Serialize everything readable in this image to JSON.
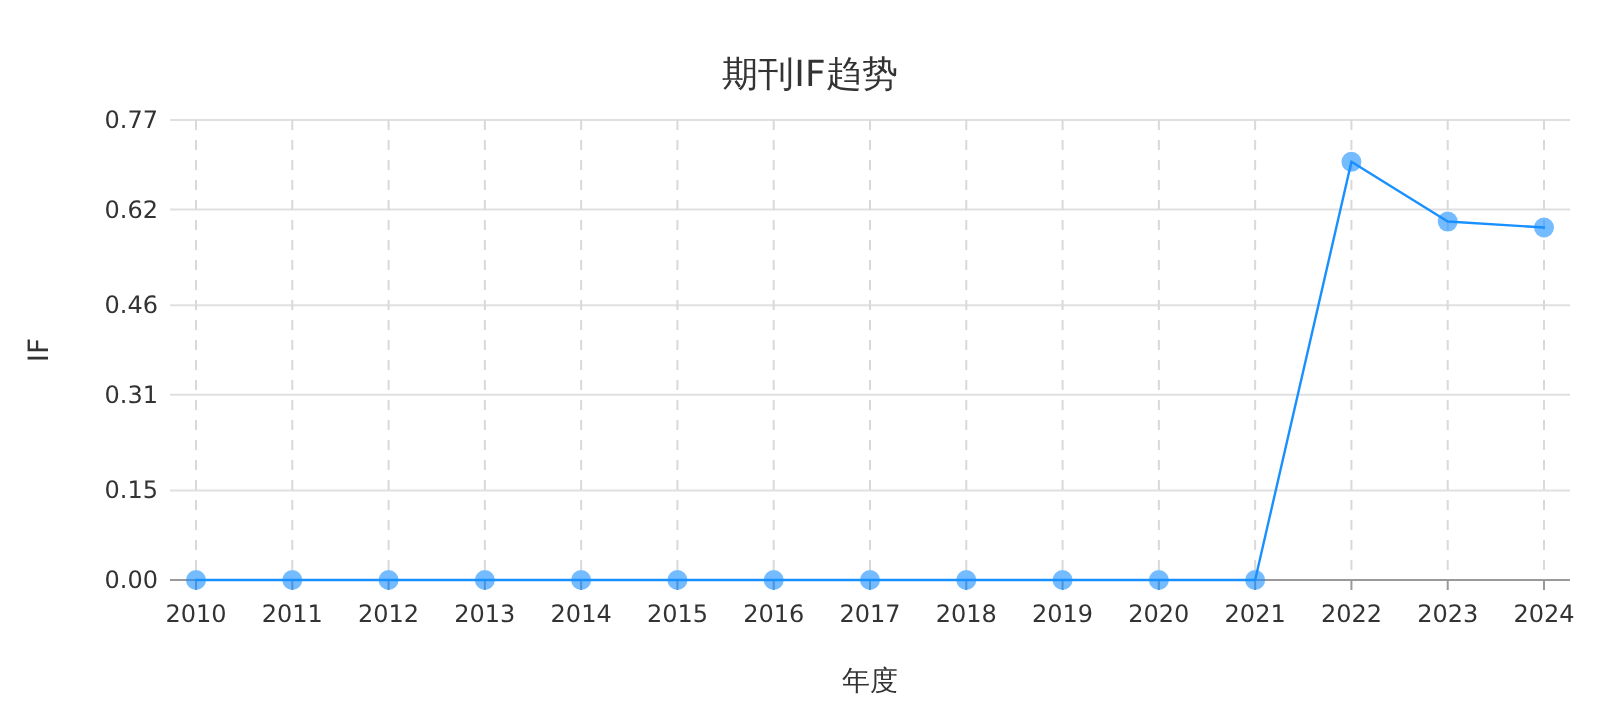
{
  "chart_data": {
    "type": "line",
    "title": "期刊IF趋势",
    "xlabel": "年度",
    "ylabel": "IF",
    "categories": [
      "2010",
      "2011",
      "2012",
      "2013",
      "2014",
      "2015",
      "2016",
      "2017",
      "2018",
      "2019",
      "2020",
      "2021",
      "2022",
      "2023",
      "2024"
    ],
    "series": [
      {
        "color": "#1890ff",
        "values": [
          0,
          0,
          0,
          0,
          0,
          0,
          0,
          0,
          0,
          0,
          0,
          0,
          0.7,
          0.6,
          0.59
        ]
      }
    ],
    "ylim": [
      0,
      0.77
    ],
    "yticks": [
      {
        "value": 0,
        "label": "0.00"
      },
      0.15,
      0.31,
      0.46,
      0.62,
      0.77
    ],
    "grid": true,
    "marker": "circle"
  }
}
